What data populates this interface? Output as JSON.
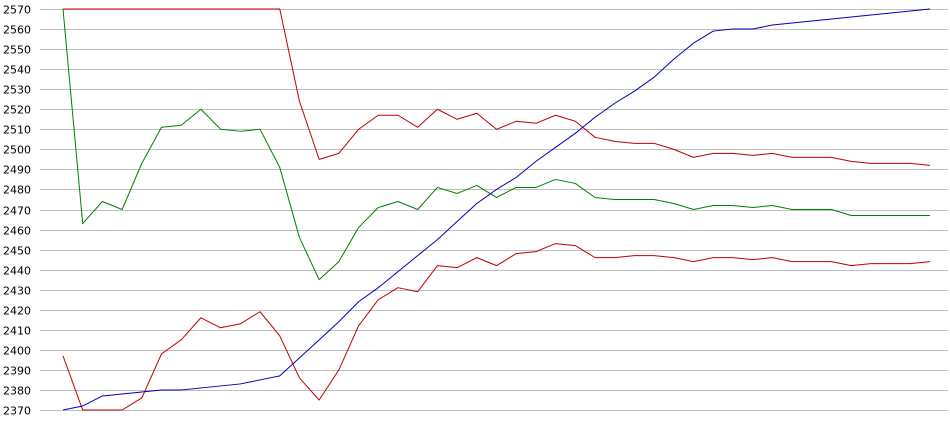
{
  "chart_data": {
    "type": "line",
    "title": "",
    "xlabel": "",
    "ylabel": "",
    "ylim": [
      2370,
      2570
    ],
    "yticks": [
      2370,
      2380,
      2390,
      2400,
      2410,
      2420,
      2430,
      2440,
      2450,
      2460,
      2470,
      2480,
      2490,
      2500,
      2510,
      2520,
      2530,
      2540,
      2550,
      2560,
      2570
    ],
    "grid": true,
    "legend": "none",
    "background": "#ffffff",
    "grid_color": "#c0c0c0",
    "series": [
      {
        "color": "#c00000",
        "values": [
          2570,
          2570,
          2570,
          2570,
          2570,
          2570,
          2570,
          2570,
          2570,
          2570,
          2570,
          2570,
          2524,
          2495,
          2498,
          2510,
          2517,
          2517,
          2511,
          2520,
          2515,
          2518,
          2510,
          2514,
          2513,
          2517,
          2514,
          2506,
          2504,
          2503,
          2503,
          2500,
          2496,
          2498,
          2498,
          2497,
          2498,
          2496,
          2496,
          2496,
          2494,
          2493,
          2493,
          2493,
          2492
        ]
      },
      {
        "color": "#008000",
        "values": [
          2570,
          2463,
          2474,
          2470,
          2493,
          2511,
          2512,
          2520,
          2510,
          2509,
          2510,
          2491,
          2456,
          2435,
          2444,
          2461,
          2471,
          2474,
          2470,
          2481,
          2478,
          2482,
          2476,
          2481,
          2481,
          2485,
          2483,
          2476,
          2475,
          2475,
          2475,
          2473,
          2470,
          2472,
          2472,
          2471,
          2472,
          2470,
          2470,
          2470,
          2467,
          2467,
          2467,
          2467,
          2467
        ]
      },
      {
        "color": "#c00000",
        "values": [
          2397,
          2370,
          2370,
          2370,
          2376,
          2398,
          2405,
          2416,
          2411,
          2413,
          2419,
          2407,
          2386,
          2375,
          2390,
          2412,
          2425,
          2431,
          2429,
          2442,
          2441,
          2446,
          2442,
          2448,
          2449,
          2453,
          2452,
          2446,
          2446,
          2447,
          2447,
          2446,
          2444,
          2446,
          2446,
          2445,
          2446,
          2444,
          2444,
          2444,
          2442,
          2443,
          2443,
          2443,
          2444
        ]
      },
      {
        "color": "#0000c0",
        "values": [
          2370,
          2372,
          2377,
          2378,
          2379,
          2380,
          2380,
          2381,
          2382,
          2383,
          2385,
          2387,
          2396,
          2405,
          2414,
          2424,
          2431,
          2439,
          2447,
          2455,
          2464,
          2473,
          2480,
          2486,
          2494,
          2501,
          2508,
          2516,
          2523,
          2529,
          2536,
          2545,
          2553,
          2559,
          2560,
          2560,
          2562,
          2563,
          2564,
          2565,
          2566,
          2567,
          2568,
          2569,
          2570
        ]
      }
    ]
  }
}
